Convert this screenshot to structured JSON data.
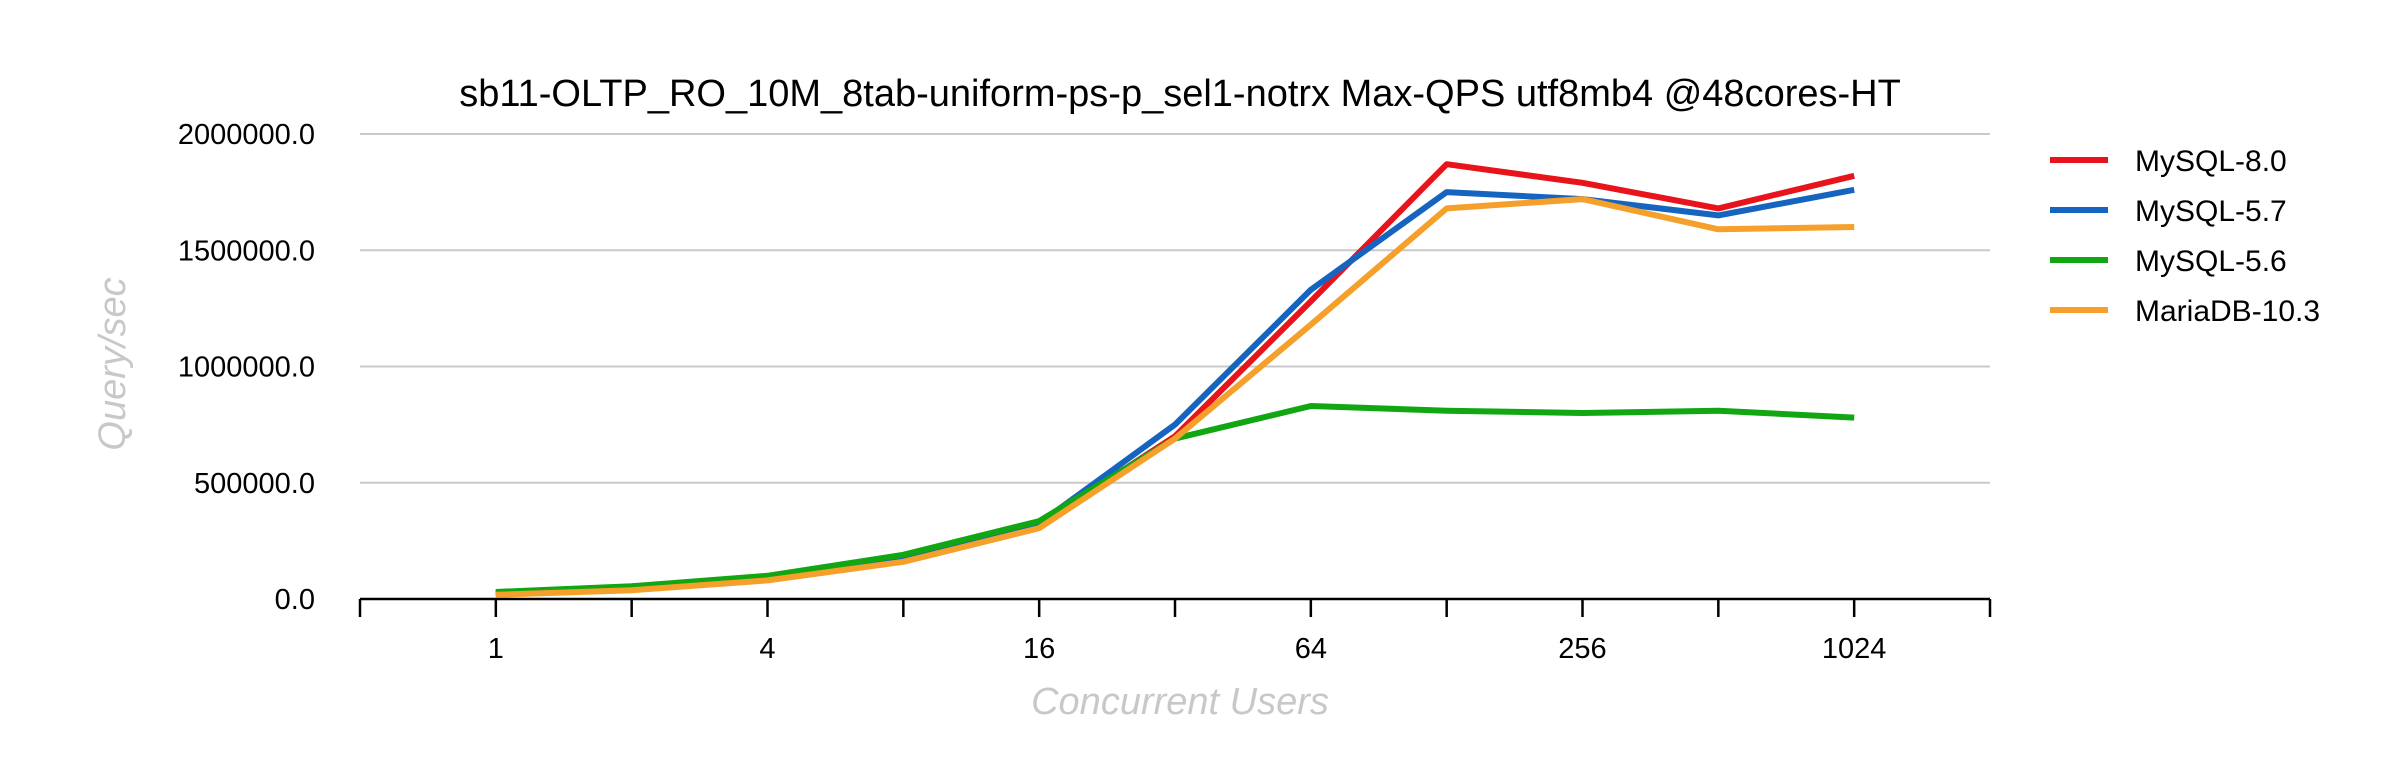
{
  "chart_data": {
    "type": "line",
    "title": "sb11-OLTP_RO_10M_8tab-uniform-ps-p_sel1-notrx Max-QPS utf8mb4 @48cores-HT",
    "xlabel": "Concurrent Users",
    "ylabel": "Query/sec",
    "x_scale": "log2",
    "x": [
      1,
      2,
      4,
      8,
      16,
      32,
      64,
      128,
      256,
      512,
      1024
    ],
    "x_tick_labels": [
      "1",
      "4",
      "16",
      "64",
      "256",
      "1024"
    ],
    "x_tick_values": [
      1,
      4,
      16,
      64,
      256,
      1024
    ],
    "xlim": [
      0.5,
      2048
    ],
    "ylim": [
      0,
      2000000
    ],
    "y_ticks": [
      0,
      500000,
      1000000,
      1500000,
      2000000
    ],
    "y_tick_labels": [
      "0.0",
      "500000.0",
      "1000000.0",
      "1500000.0",
      "2000000.0"
    ],
    "grid": true,
    "legend_position": "right",
    "series": [
      {
        "name": "MySQL-8.0",
        "color": "#e8141b",
        "values": [
          25000,
          45000,
          90000,
          170000,
          320000,
          700000,
          1280000,
          1870000,
          1790000,
          1680000,
          1820000
        ]
      },
      {
        "name": "MySQL-5.7",
        "color": "#1565c0",
        "values": [
          25000,
          45000,
          90000,
          175000,
          325000,
          750000,
          1330000,
          1750000,
          1720000,
          1650000,
          1760000
        ]
      },
      {
        "name": "MySQL-5.6",
        "color": "#12a612",
        "values": [
          30000,
          55000,
          100000,
          190000,
          335000,
          690000,
          830000,
          810000,
          800000,
          810000,
          780000
        ]
      },
      {
        "name": "MariaDB-10.3",
        "color": "#f5a02a",
        "values": [
          18000,
          38000,
          80000,
          160000,
          305000,
          690000,
          1180000,
          1680000,
          1720000,
          1590000,
          1600000
        ]
      }
    ]
  }
}
